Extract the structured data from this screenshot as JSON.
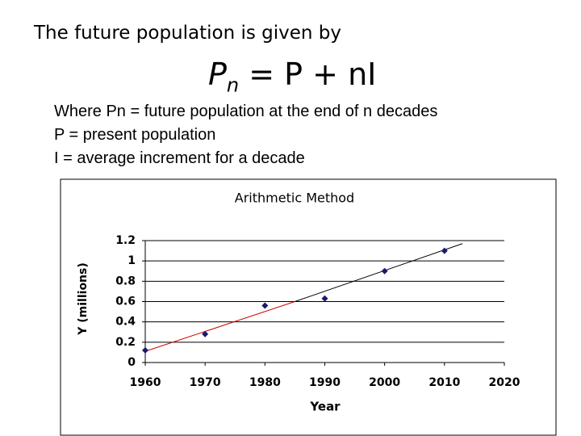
{
  "heading": "The future population is given by",
  "formula": {
    "base": "P",
    "subscript": "n",
    "rest": "= P + nI"
  },
  "lines": [
    "Where Pn = future population at the end of n decades",
    "P = present population",
    "I = average increment for a decade"
  ],
  "chart_data": {
    "type": "scatter",
    "title": "Arithmetic Method",
    "x_label": "Year",
    "y_label": "Y (millions)",
    "x": [
      1960,
      1970,
      1980,
      1990,
      2000,
      2010
    ],
    "values": [
      0.12,
      0.28,
      0.56,
      0.63,
      0.9,
      1.1
    ],
    "color": "#1a1a6e",
    "trendline": {
      "x": [
        1960,
        1985,
        2013
      ],
      "values": [
        0.11,
        0.6,
        1.17
      ],
      "colors": [
        "#cc0000",
        "#000000"
      ]
    },
    "xlim": [
      1960,
      2020
    ],
    "xticks": [
      1960,
      1970,
      1980,
      1990,
      2000,
      2010,
      2020
    ],
    "ylim": [
      0,
      1.2
    ],
    "yticks": [
      0,
      0.2,
      0.4,
      0.6,
      0.8,
      1,
      1.2
    ],
    "grid": true
  }
}
